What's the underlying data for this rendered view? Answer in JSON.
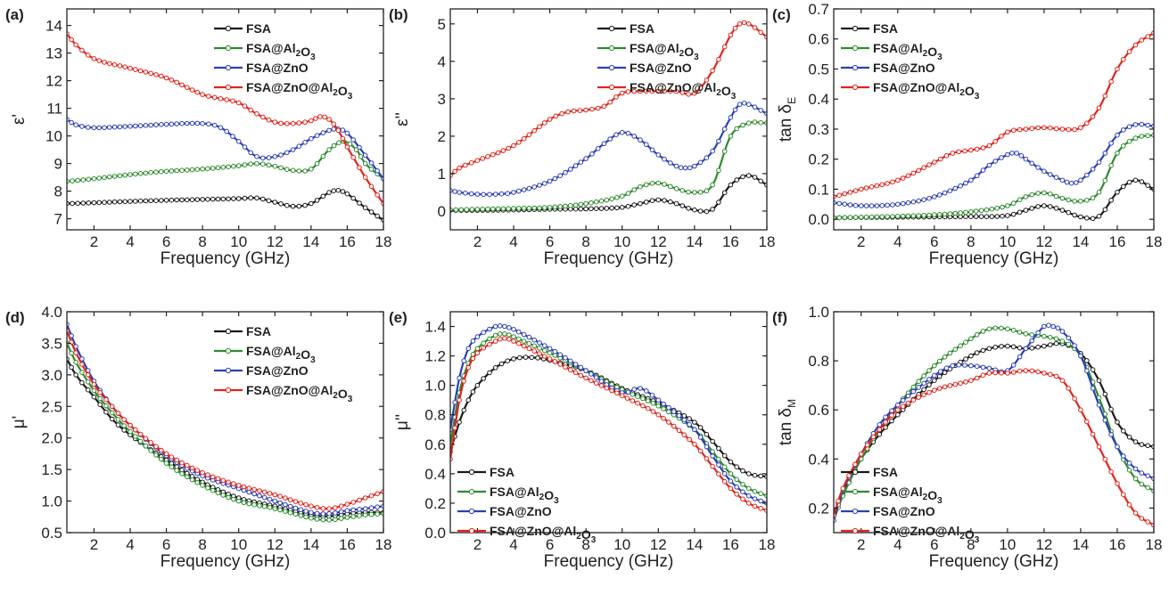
{
  "colors": {
    "FSA": "#1a1a1a",
    "FSA@Al2O3": "#2e8b2e",
    "FSA@ZnO": "#2c3fb5",
    "FSA@ZnO@Al2O3": "#e0241b"
  },
  "legend_entries": [
    {
      "key": "FSA",
      "text": "FSA",
      "parts": [
        [
          "FSA",
          ""
        ]
      ]
    },
    {
      "key": "FSA@Al2O3",
      "text": "FSA@Al2O3",
      "parts": [
        [
          "FSA@Al",
          ""
        ],
        [
          "2",
          "sub"
        ],
        [
          "O",
          ""
        ],
        [
          "3",
          "sub"
        ]
      ]
    },
    {
      "key": "FSA@ZnO",
      "text": "FSA@ZnO",
      "parts": [
        [
          "FSA@ZnO",
          ""
        ]
      ]
    },
    {
      "key": "FSA@ZnO@Al2O3",
      "text": "FSA@ZnO@Al2O3",
      "parts": [
        [
          "FSA@ZnO@Al",
          ""
        ],
        [
          "2",
          "sub"
        ],
        [
          "O",
          ""
        ],
        [
          "3",
          "sub"
        ]
      ]
    }
  ],
  "chart_data": [
    {
      "panel": "(a)",
      "type": "line",
      "xlabel": "Frequency (GHz)",
      "ylabel": "ε'",
      "xlim": [
        0.5,
        18
      ],
      "ylim": [
        6.6,
        14.6
      ],
      "xticks": [
        2,
        4,
        6,
        8,
        10,
        12,
        14,
        16,
        18
      ],
      "yticks": [
        7,
        8,
        9,
        10,
        11,
        12,
        13,
        14
      ],
      "legend": "top-right",
      "series": [
        {
          "name": "FSA",
          "x": [
            0.5,
            2,
            4,
            6,
            8,
            10,
            11,
            12,
            13,
            14,
            15,
            15.5,
            16,
            17,
            18
          ],
          "y": [
            7.55,
            7.58,
            7.63,
            7.67,
            7.7,
            7.73,
            7.75,
            7.6,
            7.45,
            7.55,
            7.95,
            8.03,
            7.9,
            7.4,
            6.95
          ]
        },
        {
          "name": "FSA@Al2O3",
          "x": [
            0.5,
            2,
            4,
            6,
            8,
            10,
            11,
            12,
            13,
            14,
            15,
            15.8,
            16.5,
            17,
            18
          ],
          "y": [
            8.35,
            8.45,
            8.6,
            8.72,
            8.8,
            8.92,
            9.0,
            8.9,
            8.75,
            8.8,
            9.5,
            9.8,
            9.5,
            9.0,
            8.45
          ]
        },
        {
          "name": "FSA@ZnO",
          "x": [
            0.5,
            1,
            2,
            4,
            6,
            8,
            9,
            10,
            11,
            12,
            13,
            14,
            15,
            15.5,
            16,
            17,
            18
          ],
          "y": [
            10.6,
            10.4,
            10.3,
            10.35,
            10.42,
            10.45,
            10.3,
            9.8,
            9.25,
            9.25,
            9.5,
            9.9,
            10.2,
            10.25,
            10.1,
            9.3,
            8.45
          ]
        },
        {
          "name": "FSA@ZnO@Al2O3",
          "x": [
            0.5,
            1,
            2,
            4,
            6,
            8,
            9,
            10,
            11,
            12,
            13,
            14,
            14.5,
            15,
            15.5,
            16,
            17,
            18
          ],
          "y": [
            13.7,
            13.3,
            12.8,
            12.45,
            12.1,
            11.5,
            11.35,
            11.2,
            10.8,
            10.5,
            10.45,
            10.55,
            10.7,
            10.6,
            10.2,
            9.6,
            8.5,
            7.55
          ]
        }
      ]
    },
    {
      "panel": "(b)",
      "type": "line",
      "xlabel": "Frequency (GHz)",
      "ylabel": "ε''",
      "xlim": [
        0.5,
        18
      ],
      "ylim": [
        -0.5,
        5.4
      ],
      "xticks": [
        2,
        4,
        6,
        8,
        10,
        12,
        14,
        16,
        18
      ],
      "yticks": [
        0,
        1,
        2,
        3,
        4,
        5
      ],
      "legend": "top-right",
      "series": [
        {
          "name": "FSA",
          "x": [
            0.5,
            2,
            4,
            6,
            8,
            10,
            11,
            12,
            13,
            14,
            15,
            16,
            17,
            18
          ],
          "y": [
            0.02,
            0.02,
            0.03,
            0.05,
            0.06,
            0.1,
            0.2,
            0.3,
            0.2,
            0.03,
            0.05,
            0.7,
            0.95,
            0.7
          ]
        },
        {
          "name": "FSA@Al2O3",
          "x": [
            0.5,
            2,
            4,
            6,
            8,
            10,
            11,
            12,
            13,
            14,
            15,
            16,
            17,
            18
          ],
          "y": [
            0.03,
            0.05,
            0.07,
            0.1,
            0.2,
            0.4,
            0.65,
            0.75,
            0.6,
            0.5,
            0.7,
            2.0,
            2.35,
            2.35
          ]
        },
        {
          "name": "FSA@ZnO",
          "x": [
            0.5,
            1,
            2,
            3,
            4,
            6,
            8,
            9,
            10,
            11,
            12,
            13,
            13.5,
            14,
            15,
            16,
            16.5,
            17,
            18
          ],
          "y": [
            0.55,
            0.5,
            0.45,
            0.45,
            0.5,
            0.8,
            1.4,
            1.8,
            2.1,
            1.9,
            1.5,
            1.2,
            1.15,
            1.2,
            1.6,
            2.5,
            2.85,
            2.85,
            2.6
          ]
        },
        {
          "name": "FSA@ZnO@Al2O3",
          "x": [
            0.5,
            1,
            2,
            4,
            6,
            7,
            8,
            9,
            10,
            11,
            12,
            13,
            14,
            15,
            16,
            16.5,
            17,
            18
          ],
          "y": [
            0.95,
            1.15,
            1.35,
            1.75,
            2.45,
            2.65,
            2.7,
            2.8,
            3.15,
            3.2,
            3.2,
            3.2,
            3.15,
            3.75,
            4.7,
            5.0,
            5.0,
            4.65
          ]
        }
      ]
    },
    {
      "panel": "(c)",
      "type": "line",
      "xlabel": "Frequency (GHz)",
      "ylabel": "tan δE",
      "xlim": [
        0.5,
        18
      ],
      "ylim": [
        -0.035,
        0.7
      ],
      "xticks": [
        2,
        4,
        6,
        8,
        10,
        12,
        14,
        16,
        18
      ],
      "yticks": [
        0.0,
        0.1,
        0.2,
        0.3,
        0.4,
        0.5,
        0.6,
        0.7
      ],
      "legend": "top-left",
      "series": [
        {
          "name": "FSA",
          "x": [
            0.5,
            2,
            4,
            6,
            8,
            10,
            11,
            12,
            13,
            14,
            15,
            16,
            17,
            18
          ],
          "y": [
            0.005,
            0.006,
            0.007,
            0.008,
            0.009,
            0.012,
            0.03,
            0.045,
            0.03,
            0.008,
            0.01,
            0.09,
            0.13,
            0.1
          ]
        },
        {
          "name": "FSA@Al2O3",
          "x": [
            0.5,
            2,
            4,
            6,
            8,
            10,
            11,
            12,
            13,
            14,
            15,
            16,
            17,
            18
          ],
          "y": [
            0.005,
            0.007,
            0.01,
            0.015,
            0.025,
            0.045,
            0.075,
            0.088,
            0.07,
            0.06,
            0.09,
            0.22,
            0.27,
            0.28
          ]
        },
        {
          "name": "FSA@ZnO",
          "x": [
            0.5,
            2,
            4,
            6,
            8,
            9,
            10,
            10.5,
            11,
            12,
            13,
            13.5,
            14,
            15,
            16,
            17,
            18
          ],
          "y": [
            0.055,
            0.045,
            0.05,
            0.075,
            0.13,
            0.18,
            0.215,
            0.22,
            0.2,
            0.16,
            0.13,
            0.12,
            0.13,
            0.19,
            0.28,
            0.315,
            0.31
          ]
        },
        {
          "name": "FSA@ZnO@Al2O3",
          "x": [
            0.5,
            2,
            4,
            6,
            7,
            8,
            9,
            10,
            11,
            12,
            13,
            14,
            15,
            16,
            17,
            18
          ],
          "y": [
            0.075,
            0.1,
            0.13,
            0.19,
            0.22,
            0.23,
            0.245,
            0.29,
            0.3,
            0.305,
            0.3,
            0.305,
            0.37,
            0.5,
            0.58,
            0.62
          ]
        }
      ]
    },
    {
      "panel": "(d)",
      "type": "line",
      "xlabel": "Frequency (GHz)",
      "ylabel": "μ'",
      "xlim": [
        0.5,
        18
      ],
      "ylim": [
        0.5,
        4.0
      ],
      "xticks": [
        2,
        4,
        6,
        8,
        10,
        12,
        14,
        16,
        18
      ],
      "yticks": [
        0.5,
        1.0,
        1.5,
        2.0,
        2.5,
        3.0,
        3.5,
        4.0
      ],
      "legend": "top-right",
      "series": [
        {
          "name": "FSA",
          "x": [
            0.5,
            1,
            2,
            3,
            4,
            6,
            8,
            10,
            12,
            14,
            15,
            16,
            17,
            18
          ],
          "y": [
            3.25,
            3.0,
            2.65,
            2.3,
            2.05,
            1.65,
            1.3,
            1.05,
            0.92,
            0.78,
            0.76,
            0.8,
            0.82,
            0.82
          ]
        },
        {
          "name": "FSA@Al2O3",
          "x": [
            0.5,
            1,
            2,
            3,
            4,
            6,
            8,
            10,
            12,
            14,
            15,
            16,
            17,
            18
          ],
          "y": [
            3.5,
            3.2,
            2.75,
            2.4,
            2.1,
            1.6,
            1.25,
            1.0,
            0.88,
            0.73,
            0.7,
            0.74,
            0.78,
            0.8
          ]
        },
        {
          "name": "FSA@ZnO",
          "x": [
            0.5,
            1,
            2,
            3,
            4,
            6,
            8,
            10,
            12,
            14,
            15,
            16,
            17,
            18
          ],
          "y": [
            3.8,
            3.45,
            2.9,
            2.5,
            2.2,
            1.72,
            1.4,
            1.2,
            1.0,
            0.82,
            0.8,
            0.85,
            0.88,
            0.92
          ]
        },
        {
          "name": "FSA@ZnO@Al2O3",
          "x": [
            0.5,
            1,
            2,
            3,
            4,
            6,
            8,
            10,
            12,
            14,
            15,
            16,
            17,
            18
          ],
          "y": [
            3.7,
            3.35,
            2.85,
            2.5,
            2.2,
            1.75,
            1.45,
            1.25,
            1.1,
            0.92,
            0.88,
            0.95,
            1.05,
            1.15
          ]
        }
      ]
    },
    {
      "panel": "(e)",
      "type": "line",
      "xlabel": "Frequency (GHz)",
      "ylabel": "μ''",
      "xlim": [
        0.5,
        18
      ],
      "ylim": [
        0.0,
        1.5
      ],
      "xticks": [
        2,
        4,
        6,
        8,
        10,
        12,
        14,
        16,
        18
      ],
      "yticks": [
        0.0,
        0.2,
        0.4,
        0.6,
        0.8,
        1.0,
        1.2,
        1.4
      ],
      "legend": "bottom-left",
      "series": [
        {
          "name": "FSA",
          "x": [
            0.5,
            1,
            1.5,
            2,
            3,
            4,
            5,
            6,
            8,
            10,
            12,
            14,
            15,
            16,
            17,
            18
          ],
          "y": [
            0.55,
            0.75,
            0.9,
            1.0,
            1.12,
            1.18,
            1.19,
            1.17,
            1.1,
            0.98,
            0.88,
            0.75,
            0.62,
            0.48,
            0.4,
            0.38
          ]
        },
        {
          "name": "FSA@Al2O3",
          "x": [
            0.5,
            1,
            1.5,
            2,
            3,
            3.5,
            4,
            6,
            8,
            10,
            12,
            14,
            15,
            16,
            17,
            18
          ],
          "y": [
            0.6,
            0.95,
            1.15,
            1.25,
            1.34,
            1.35,
            1.33,
            1.22,
            1.1,
            0.97,
            0.86,
            0.7,
            0.55,
            0.4,
            0.3,
            0.25
          ]
        },
        {
          "name": "FSA@ZnO",
          "x": [
            0.5,
            1,
            1.5,
            2,
            3,
            3.5,
            4,
            6,
            8,
            10,
            11,
            12,
            14,
            15,
            16,
            17,
            18
          ],
          "y": [
            0.7,
            1.05,
            1.25,
            1.33,
            1.4,
            1.4,
            1.38,
            1.25,
            1.1,
            0.95,
            0.98,
            0.9,
            0.7,
            0.52,
            0.35,
            0.25,
            0.2
          ]
        },
        {
          "name": "FSA@ZnO@Al2O3",
          "x": [
            0.5,
            1,
            1.5,
            2,
            3,
            3.5,
            4,
            6,
            8,
            10,
            12,
            14,
            15,
            16,
            17,
            18
          ],
          "y": [
            0.5,
            0.9,
            1.12,
            1.22,
            1.3,
            1.32,
            1.3,
            1.18,
            1.05,
            0.93,
            0.8,
            0.6,
            0.45,
            0.3,
            0.2,
            0.15
          ]
        }
      ]
    },
    {
      "panel": "(f)",
      "type": "line",
      "xlabel": "Frequency (GHz)",
      "ylabel": "tan δM",
      "xlim": [
        0.5,
        18
      ],
      "ylim": [
        0.1,
        1.0
      ],
      "xticks": [
        2,
        4,
        6,
        8,
        10,
        12,
        14,
        16,
        18
      ],
      "yticks": [
        0.2,
        0.4,
        0.6,
        0.8,
        1.0
      ],
      "legend": "bottom-left",
      "series": [
        {
          "name": "FSA",
          "x": [
            0.5,
            1,
            2,
            3,
            4,
            6,
            8,
            9,
            10,
            11,
            12,
            13,
            14,
            15,
            16,
            17,
            18
          ],
          "y": [
            0.18,
            0.26,
            0.4,
            0.5,
            0.58,
            0.72,
            0.82,
            0.85,
            0.86,
            0.85,
            0.86,
            0.87,
            0.83,
            0.72,
            0.55,
            0.47,
            0.45
          ]
        },
        {
          "name": "FSA@Al2O3",
          "x": [
            0.5,
            1,
            2,
            3,
            4,
            6,
            8,
            9,
            10,
            11,
            12,
            13,
            14,
            15,
            16,
            17,
            18
          ],
          "y": [
            0.15,
            0.25,
            0.4,
            0.52,
            0.62,
            0.78,
            0.89,
            0.93,
            0.93,
            0.91,
            0.9,
            0.88,
            0.82,
            0.65,
            0.45,
            0.32,
            0.27
          ]
        },
        {
          "name": "FSA@ZnO",
          "x": [
            0.5,
            1,
            2,
            3,
            4,
            6,
            7,
            8,
            9,
            10,
            11,
            12,
            12.5,
            13,
            14,
            15,
            16,
            17,
            18
          ],
          "y": [
            0.15,
            0.27,
            0.42,
            0.54,
            0.62,
            0.74,
            0.78,
            0.78,
            0.77,
            0.76,
            0.85,
            0.94,
            0.94,
            0.92,
            0.82,
            0.62,
            0.45,
            0.36,
            0.32
          ]
        },
        {
          "name": "FSA@ZnO@Al2O3",
          "x": [
            0.5,
            1,
            2,
            3,
            4,
            6,
            8,
            9,
            10,
            11,
            12,
            13,
            14,
            15,
            16,
            17,
            18
          ],
          "y": [
            0.17,
            0.28,
            0.42,
            0.52,
            0.6,
            0.68,
            0.72,
            0.75,
            0.75,
            0.76,
            0.75,
            0.72,
            0.6,
            0.45,
            0.3,
            0.18,
            0.13
          ]
        }
      ]
    }
  ]
}
